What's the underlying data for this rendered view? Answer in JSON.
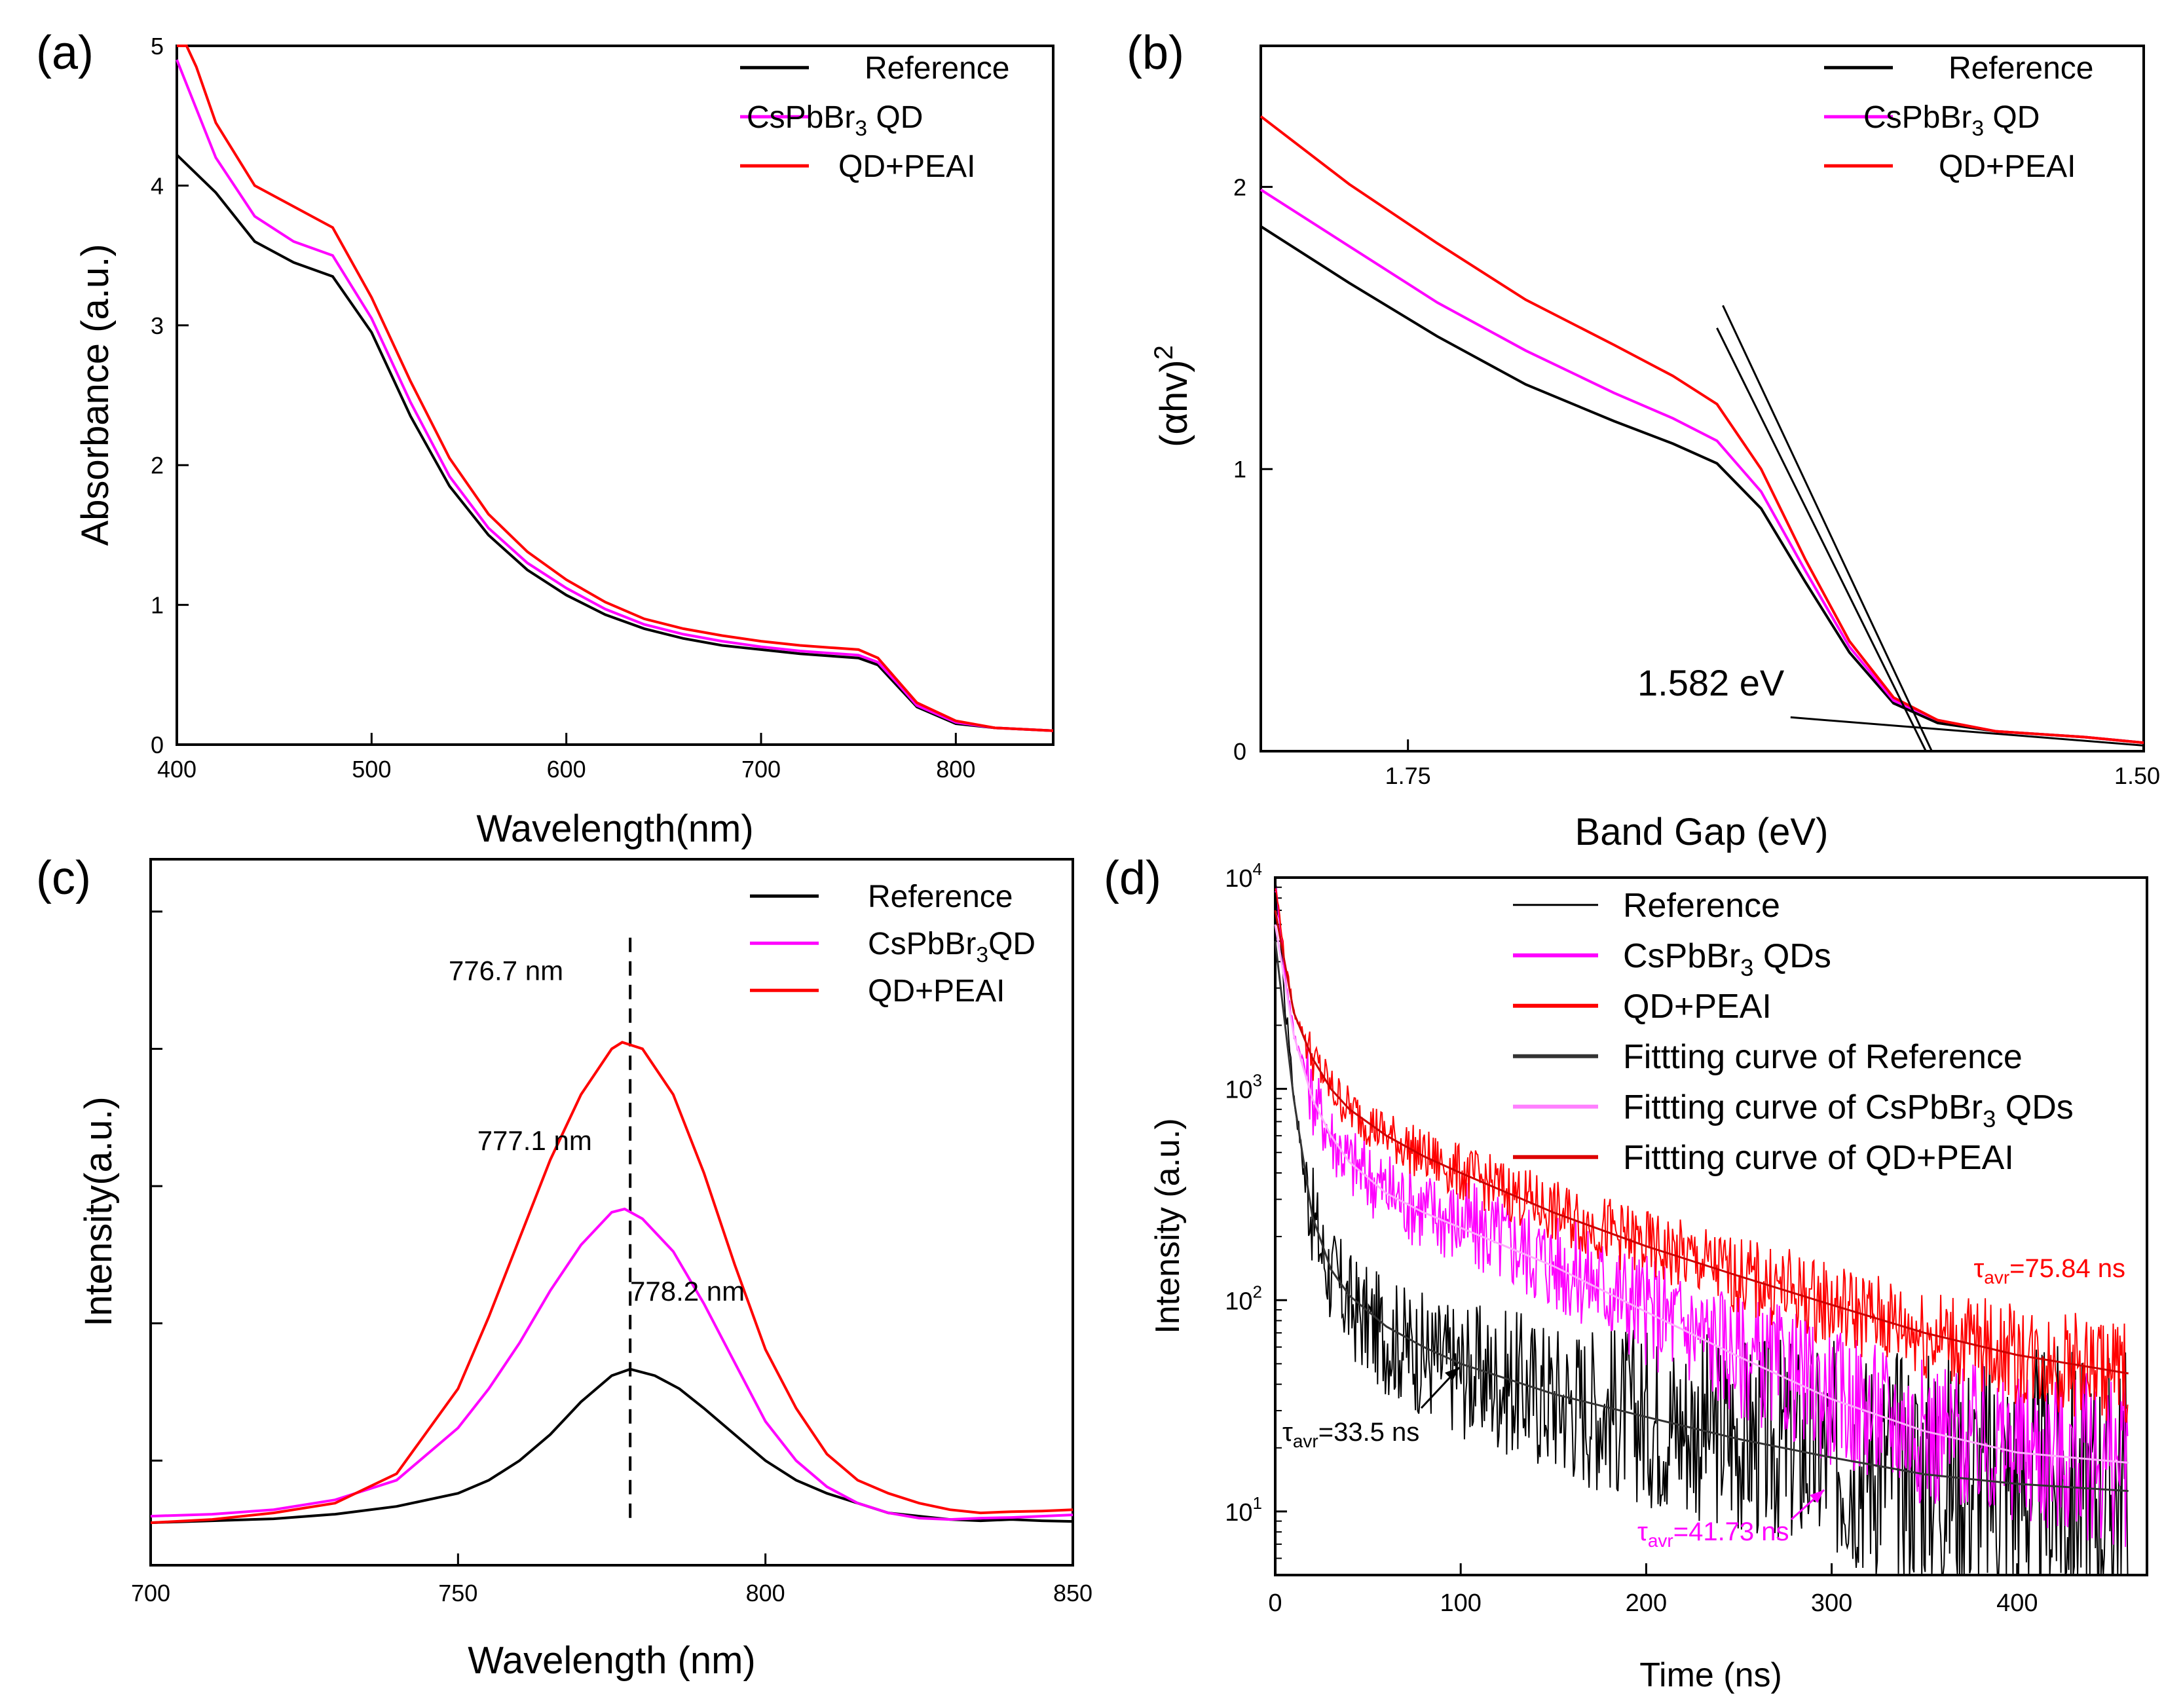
{
  "colors": {
    "reference": "#000000",
    "cspbbr3": "#ff00ff",
    "qd_peai": "#ff0000"
  },
  "chart_data": [
    {
      "id": "a",
      "type": "line",
      "label": "(a)",
      "xlabel": "Wavelength(nm)",
      "ylabel": "Absorbance (a.u.)",
      "xlim": [
        400,
        850
      ],
      "ylim": [
        0,
        5
      ],
      "xticks": [
        400,
        500,
        600,
        700,
        800
      ],
      "yticks": [
        0,
        1,
        2,
        3,
        4,
        5
      ],
      "legend": [
        {
          "name": "Reference",
          "color": "#000000"
        },
        {
          "name": "CsPbBr",
          "sub": "3",
          "rest": " QD",
          "color": "#ff00ff"
        },
        {
          "name": "QD+PEAI",
          "color": "#ff0000"
        }
      ],
      "series": [
        {
          "name": "Reference",
          "color": "#000000",
          "x": [
            400,
            420,
            440,
            460,
            480,
            500,
            520,
            540,
            560,
            580,
            600,
            620,
            640,
            660,
            680,
            700,
            720,
            740,
            750,
            760,
            770,
            780,
            800,
            820,
            850
          ],
          "y": [
            4.22,
            3.95,
            3.6,
            3.45,
            3.35,
            2.95,
            2.35,
            1.85,
            1.5,
            1.25,
            1.07,
            0.93,
            0.83,
            0.76,
            0.71,
            0.68,
            0.65,
            0.63,
            0.62,
            0.57,
            0.42,
            0.27,
            0.15,
            0.12,
            0.1
          ]
        },
        {
          "name": "CsPbBr3 QD",
          "color": "#ff00ff",
          "x": [
            400,
            410,
            420,
            440,
            460,
            480,
            500,
            520,
            540,
            560,
            580,
            600,
            620,
            640,
            660,
            680,
            700,
            720,
            740,
            750,
            760,
            770,
            780,
            800,
            820,
            850
          ],
          "y": [
            4.9,
            4.55,
            4.2,
            3.78,
            3.6,
            3.5,
            3.05,
            2.45,
            1.92,
            1.55,
            1.3,
            1.12,
            0.97,
            0.86,
            0.79,
            0.74,
            0.7,
            0.67,
            0.65,
            0.64,
            0.59,
            0.44,
            0.28,
            0.16,
            0.12,
            0.1
          ]
        },
        {
          "name": "QD+PEAI",
          "color": "#ff0000",
          "x": [
            400,
            405,
            410,
            420,
            440,
            460,
            480,
            500,
            520,
            540,
            560,
            580,
            600,
            620,
            640,
            660,
            680,
            700,
            720,
            740,
            750,
            760,
            770,
            780,
            800,
            820,
            850
          ],
          "y": [
            5.0,
            5.0,
            4.85,
            4.45,
            4.0,
            3.85,
            3.7,
            3.2,
            2.6,
            2.05,
            1.65,
            1.38,
            1.18,
            1.02,
            0.9,
            0.83,
            0.78,
            0.74,
            0.71,
            0.69,
            0.68,
            0.62,
            0.46,
            0.3,
            0.17,
            0.12,
            0.1
          ]
        }
      ]
    },
    {
      "id": "b",
      "type": "line",
      "label": "(b)",
      "xlabel": "Band Gap (eV)",
      "ylabel_base": "(αhv)",
      "ylabel_sup": "2",
      "xlim": [
        1.8,
        1.5
      ],
      "ylim": [
        0,
        2.5
      ],
      "xticks": [
        1.75,
        1.5
      ],
      "xtick_labels": [
        "1.75",
        "1.50"
      ],
      "yticks": [
        0,
        1,
        2
      ],
      "annotation": "1.582 eV",
      "legend": [
        {
          "name": "Reference",
          "color": "#000000"
        },
        {
          "name": "CsPbBr",
          "sub": "3",
          "rest": " QD",
          "color": "#ff00ff"
        },
        {
          "name": "QD+PEAI",
          "color": "#ff0000"
        }
      ],
      "series": [
        {
          "name": "Reference",
          "color": "#000000",
          "x": [
            1.8,
            1.77,
            1.74,
            1.71,
            1.68,
            1.66,
            1.645,
            1.63,
            1.615,
            1.6,
            1.585,
            1.57,
            1.55,
            1.52,
            1.5
          ],
          "y": [
            1.86,
            1.66,
            1.47,
            1.3,
            1.17,
            1.09,
            1.02,
            0.86,
            0.6,
            0.35,
            0.17,
            0.1,
            0.07,
            0.05,
            0.03
          ]
        },
        {
          "name": "CsPbBr3 QD",
          "color": "#ff00ff",
          "x": [
            1.8,
            1.77,
            1.74,
            1.71,
            1.68,
            1.66,
            1.645,
            1.63,
            1.615,
            1.6,
            1.585,
            1.57,
            1.55,
            1.52,
            1.5
          ],
          "y": [
            1.99,
            1.79,
            1.59,
            1.42,
            1.27,
            1.18,
            1.1,
            0.92,
            0.64,
            0.37,
            0.18,
            0.11,
            0.07,
            0.05,
            0.03
          ]
        },
        {
          "name": "QD+PEAI",
          "color": "#ff0000",
          "x": [
            1.8,
            1.77,
            1.74,
            1.71,
            1.68,
            1.66,
            1.645,
            1.63,
            1.615,
            1.6,
            1.585,
            1.57,
            1.55,
            1.52,
            1.5
          ],
          "y": [
            2.25,
            2.01,
            1.8,
            1.6,
            1.44,
            1.33,
            1.23,
            1.0,
            0.68,
            0.39,
            0.19,
            0.11,
            0.07,
            0.05,
            0.03
          ]
        }
      ],
      "fit_lines": [
        {
          "x": [
            1.643,
            1.572
          ],
          "y": [
            1.58,
            0.0
          ]
        },
        {
          "x": [
            1.645,
            1.574
          ],
          "y": [
            1.5,
            0.0
          ]
        },
        {
          "x": [
            1.62,
            1.5
          ],
          "y": [
            0.12,
            0.02
          ]
        }
      ]
    },
    {
      "id": "c",
      "type": "line",
      "label": "(c)",
      "xlabel": "Wavelength (nm)",
      "ylabel": "Intensity(a.u.)",
      "xlim": [
        700,
        850
      ],
      "ylim": [
        0,
        1
      ],
      "xticks": [
        700,
        750,
        800,
        850
      ],
      "yticks_unlabeled": [
        0.16,
        0.37,
        0.58,
        0.79,
        1.0
      ],
      "peak_line_x": 778,
      "legend": [
        {
          "name": "Reference",
          "color": "#000000"
        },
        {
          "name": "CsPbBr",
          "sub": "3",
          "rest": "QD",
          "color": "#ff00ff"
        },
        {
          "name": "QD+PEAI",
          "color": "#ff0000"
        }
      ],
      "peak_labels": [
        {
          "text": "776.7 nm",
          "x": 776.7,
          "y": 0.905
        },
        {
          "text": "777.1 nm",
          "x": 777.1,
          "y": 0.645
        },
        {
          "text": "778.2 nm",
          "x": 778.2,
          "y": 0.415
        }
      ],
      "series": [
        {
          "name": "Reference",
          "color": "#000000",
          "x": [
            700,
            710,
            720,
            730,
            740,
            750,
            755,
            760,
            765,
            770,
            775,
            778,
            782,
            786,
            790,
            795,
            800,
            805,
            810,
            815,
            820,
            825,
            830,
            835,
            840,
            845,
            850
          ],
          "y": [
            0.065,
            0.068,
            0.071,
            0.078,
            0.09,
            0.11,
            0.13,
            0.16,
            0.2,
            0.25,
            0.29,
            0.3,
            0.29,
            0.27,
            0.24,
            0.2,
            0.16,
            0.13,
            0.11,
            0.095,
            0.08,
            0.075,
            0.07,
            0.068,
            0.07,
            0.068,
            0.067
          ]
        },
        {
          "name": "CsPbBr3 QD",
          "color": "#ff00ff",
          "x": [
            700,
            710,
            720,
            730,
            740,
            750,
            755,
            760,
            765,
            770,
            775,
            777.1,
            780,
            785,
            790,
            795,
            800,
            805,
            810,
            815,
            820,
            825,
            830,
            835,
            840,
            845,
            850
          ],
          "y": [
            0.075,
            0.078,
            0.085,
            0.1,
            0.13,
            0.21,
            0.27,
            0.34,
            0.42,
            0.49,
            0.54,
            0.545,
            0.53,
            0.48,
            0.4,
            0.31,
            0.22,
            0.16,
            0.12,
            0.095,
            0.08,
            0.072,
            0.07,
            0.072,
            0.073,
            0.075,
            0.077
          ]
        },
        {
          "name": "QD+PEAI",
          "color": "#ff0000",
          "x": [
            700,
            710,
            720,
            730,
            740,
            750,
            755,
            760,
            765,
            770,
            775,
            776.7,
            780,
            785,
            790,
            795,
            800,
            805,
            810,
            815,
            820,
            825,
            830,
            835,
            840,
            845,
            850
          ],
          "y": [
            0.065,
            0.07,
            0.08,
            0.095,
            0.14,
            0.27,
            0.38,
            0.5,
            0.62,
            0.72,
            0.79,
            0.8,
            0.79,
            0.72,
            0.6,
            0.46,
            0.33,
            0.24,
            0.17,
            0.13,
            0.11,
            0.095,
            0.085,
            0.08,
            0.082,
            0.083,
            0.085
          ]
        }
      ]
    },
    {
      "id": "d",
      "type": "line",
      "yscale": "log",
      "label": "(d)",
      "xlabel": "Time (ns)",
      "ylabel": "Intensity (a.u.)",
      "xlim": [
        0,
        470
      ],
      "ylim": [
        5,
        10000
      ],
      "xticks": [
        0,
        100,
        200,
        300,
        400
      ],
      "yticks": [
        10,
        100,
        1000,
        10000
      ],
      "ytick_labels": [
        {
          "base": "10",
          "exp": "1"
        },
        {
          "base": "10",
          "exp": "2"
        },
        {
          "base": "10",
          "exp": "3"
        },
        {
          "base": "10",
          "exp": "4"
        }
      ],
      "legend": [
        {
          "name": "Reference",
          "color": "#000000",
          "thin": true
        },
        {
          "name": "CsPbBr",
          "sub": "3",
          "rest": " QDs",
          "color": "#ff00ff"
        },
        {
          "name": "QD+PEAI",
          "color": "#ff0000"
        },
        {
          "name": "Fittting curve of Reference",
          "color": "#333333"
        },
        {
          "name": "Fittting curve of CsPbBr",
          "sub": "3",
          "rest": " QDs",
          "color": "#ff7fff"
        },
        {
          "name": "Fittting curve of QD+PEAI",
          "color": "#dd0000"
        }
      ],
      "annotations": [
        {
          "prefix": "τ",
          "sub": "avr",
          "text": "=75.84 ns",
          "color": "#ff0000"
        },
        {
          "prefix": "τ",
          "sub": "avr",
          "text": "=33.5 ns",
          "color": "#000000"
        },
        {
          "prefix": "τ",
          "sub": "avr",
          "text": "=41.73 ns",
          "color": "#ff00ff"
        }
      ],
      "series": [
        {
          "name": "Reference",
          "color": "#000000",
          "noise": 0.22,
          "x": [
            0,
            5,
            10,
            15,
            20,
            25,
            30,
            40,
            50,
            60,
            80,
            100,
            150,
            200,
            250,
            300,
            350,
            400,
            460
          ],
          "y": [
            9000,
            2500,
            900,
            420,
            250,
            170,
            130,
            95,
            78,
            68,
            55,
            47,
            35,
            28,
            23,
            19,
            16,
            14,
            12
          ]
        },
        {
          "name": "CsPbBr3 QDs",
          "color": "#ff00ff",
          "noise": 0.16,
          "x": [
            0,
            5,
            10,
            20,
            30,
            40,
            60,
            80,
            100,
            150,
            200,
            250,
            300,
            350,
            400,
            460
          ],
          "y": [
            9000,
            3500,
            1800,
            900,
            600,
            450,
            330,
            270,
            230,
            150,
            90,
            55,
            35,
            24,
            20,
            17
          ]
        },
        {
          "name": "QD+PEAI",
          "color": "#ff0000",
          "noise": 0.1,
          "x": [
            0,
            5,
            10,
            20,
            30,
            40,
            60,
            80,
            100,
            150,
            200,
            250,
            300,
            350,
            400,
            460
          ],
          "y": [
            9000,
            4000,
            2300,
            1400,
            1000,
            800,
            600,
            480,
            400,
            260,
            180,
            130,
            95,
            70,
            55,
            45
          ]
        }
      ],
      "fits": [
        {
          "name": "Fit Reference",
          "color": "#333333",
          "x": [
            0,
            10,
            20,
            30,
            40,
            60,
            80,
            100,
            150,
            200,
            250,
            300,
            350,
            400,
            460
          ],
          "y": [
            5000,
            900,
            250,
            140,
            105,
            75,
            60,
            50,
            36,
            28,
            22,
            18,
            15,
            13.5,
            12.5
          ]
        },
        {
          "name": "Fit CsPbBr3 QDs",
          "color": "#ffaaff",
          "x": [
            0,
            10,
            20,
            30,
            40,
            60,
            80,
            100,
            150,
            200,
            250,
            300,
            350,
            400,
            460
          ],
          "y": [
            6000,
            1800,
            900,
            600,
            450,
            320,
            260,
            220,
            145,
            88,
            54,
            34,
            24,
            19,
            17
          ]
        },
        {
          "name": "Fit QD+PEAI",
          "color": "#cc0000",
          "x": [
            0,
            10,
            20,
            30,
            40,
            60,
            80,
            100,
            150,
            200,
            250,
            300,
            350,
            400,
            460
          ],
          "y": [
            7000,
            2300,
            1400,
            1000,
            800,
            600,
            480,
            400,
            260,
            180,
            130,
            95,
            70,
            55,
            45
          ]
        }
      ]
    }
  ]
}
